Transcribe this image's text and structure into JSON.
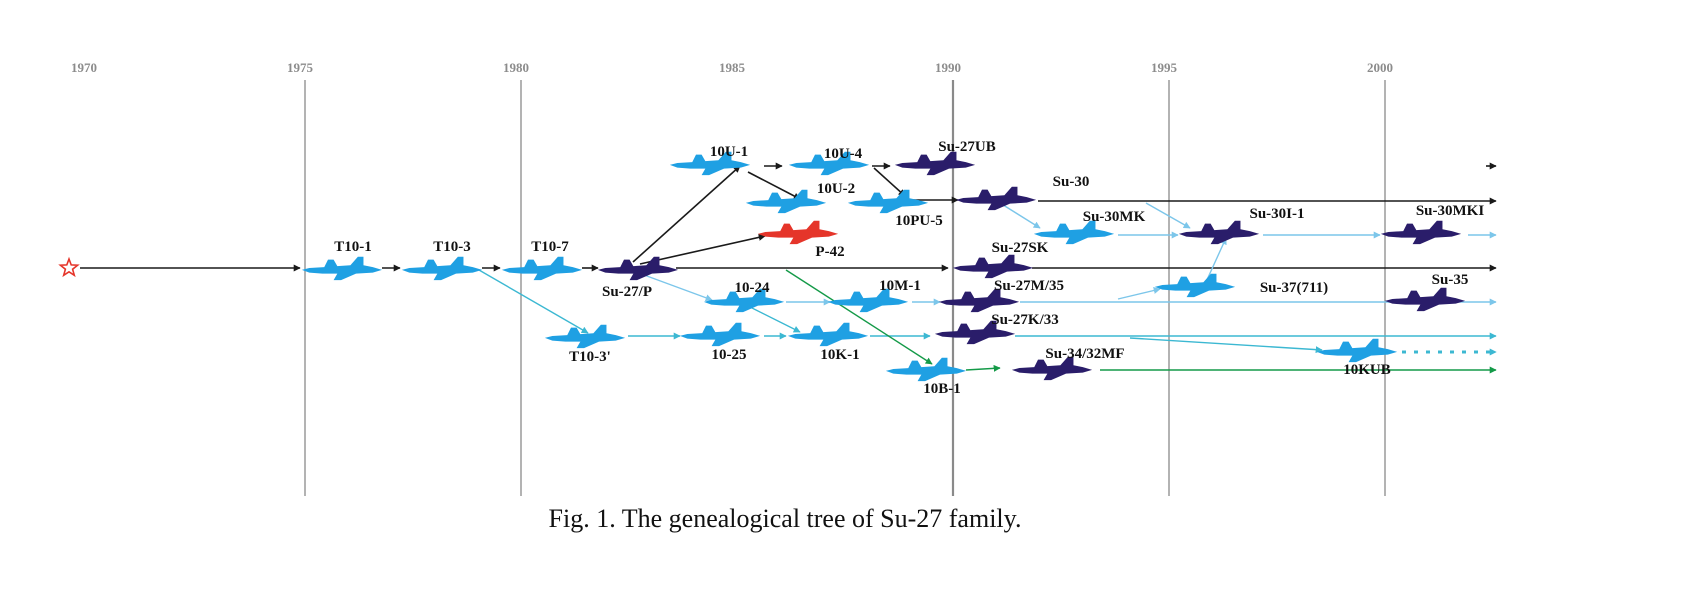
{
  "caption": "Fig. 1.  The genealogical tree of Su-27 family.",
  "colors": {
    "light_blue": "#1fa0e3",
    "dark_navy": "#2a1d6a",
    "red": "#e5352a",
    "black_line": "#1a1a1a",
    "cyan_line": "#3cb8d2",
    "sky_line": "#7cc6ea",
    "green_line": "#149a48",
    "gridline": "#8a8a8a"
  },
  "years": [
    {
      "label": "1970",
      "gridline": false
    },
    {
      "label": "1975",
      "gridline": true
    },
    {
      "label": "1980",
      "gridline": true
    },
    {
      "label": "1985",
      "gridline": false
    },
    {
      "label": "1990",
      "gridline": true
    },
    {
      "label": "1995",
      "gridline": true
    },
    {
      "label": "2000",
      "gridline": true
    }
  ],
  "origin_icon": "star-outline-icon",
  "aircraft_icon": "jet-silhouette-icon",
  "aircraft": [
    {
      "id": "t10-1",
      "label": "T10-1",
      "color": "light_blue"
    },
    {
      "id": "t10-3",
      "label": "T10-3",
      "color": "light_blue"
    },
    {
      "id": "t10-7",
      "label": "T10-7",
      "color": "light_blue"
    },
    {
      "id": "su-27p",
      "label": "Su-27/P",
      "color": "dark_navy"
    },
    {
      "id": "t10-3p",
      "label": "T10-3'",
      "color": "light_blue"
    },
    {
      "id": "10u-1",
      "label": "10U-1",
      "color": "light_blue"
    },
    {
      "id": "10u-4",
      "label": "10U-4",
      "color": "light_blue"
    },
    {
      "id": "su-27ub",
      "label": "Su-27UB",
      "color": "dark_navy"
    },
    {
      "id": "10u-2",
      "label": "10U-2",
      "color": "light_blue"
    },
    {
      "id": "10pu-5",
      "label": "10PU-5",
      "color": "light_blue"
    },
    {
      "id": "su-30",
      "label": "Su-30",
      "color": "dark_navy"
    },
    {
      "id": "p-42",
      "label": "P-42",
      "color": "red"
    },
    {
      "id": "10-24",
      "label": "10-24",
      "color": "light_blue"
    },
    {
      "id": "10m-1",
      "label": "10M-1",
      "color": "light_blue"
    },
    {
      "id": "10-25",
      "label": "10-25",
      "color": "light_blue"
    },
    {
      "id": "10k-1",
      "label": "10K-1",
      "color": "light_blue"
    },
    {
      "id": "10b-1",
      "label": "10B-1",
      "color": "light_blue"
    },
    {
      "id": "su-30mk",
      "label": "Su-30MK",
      "color": "light_blue"
    },
    {
      "id": "su-27sk",
      "label": "Su-27SK",
      "color": "dark_navy"
    },
    {
      "id": "su-27m35",
      "label": "Su-27M/35",
      "color": "dark_navy"
    },
    {
      "id": "su-27k33",
      "label": "Su-27K/33",
      "color": "dark_navy"
    },
    {
      "id": "su-34",
      "label": "Su-34/32MF",
      "color": "dark_navy"
    },
    {
      "id": "su-30i-1",
      "label": "Su-30I-1",
      "color": "dark_navy"
    },
    {
      "id": "su-37",
      "label": "Su-37(711)",
      "color": "light_blue"
    },
    {
      "id": "su-30mki",
      "label": "Su-30MKI",
      "color": "dark_navy"
    },
    {
      "id": "su-35",
      "label": "Su-35",
      "color": "dark_navy"
    },
    {
      "id": "10kub",
      "label": "10KUB",
      "color": "light_blue"
    }
  ]
}
